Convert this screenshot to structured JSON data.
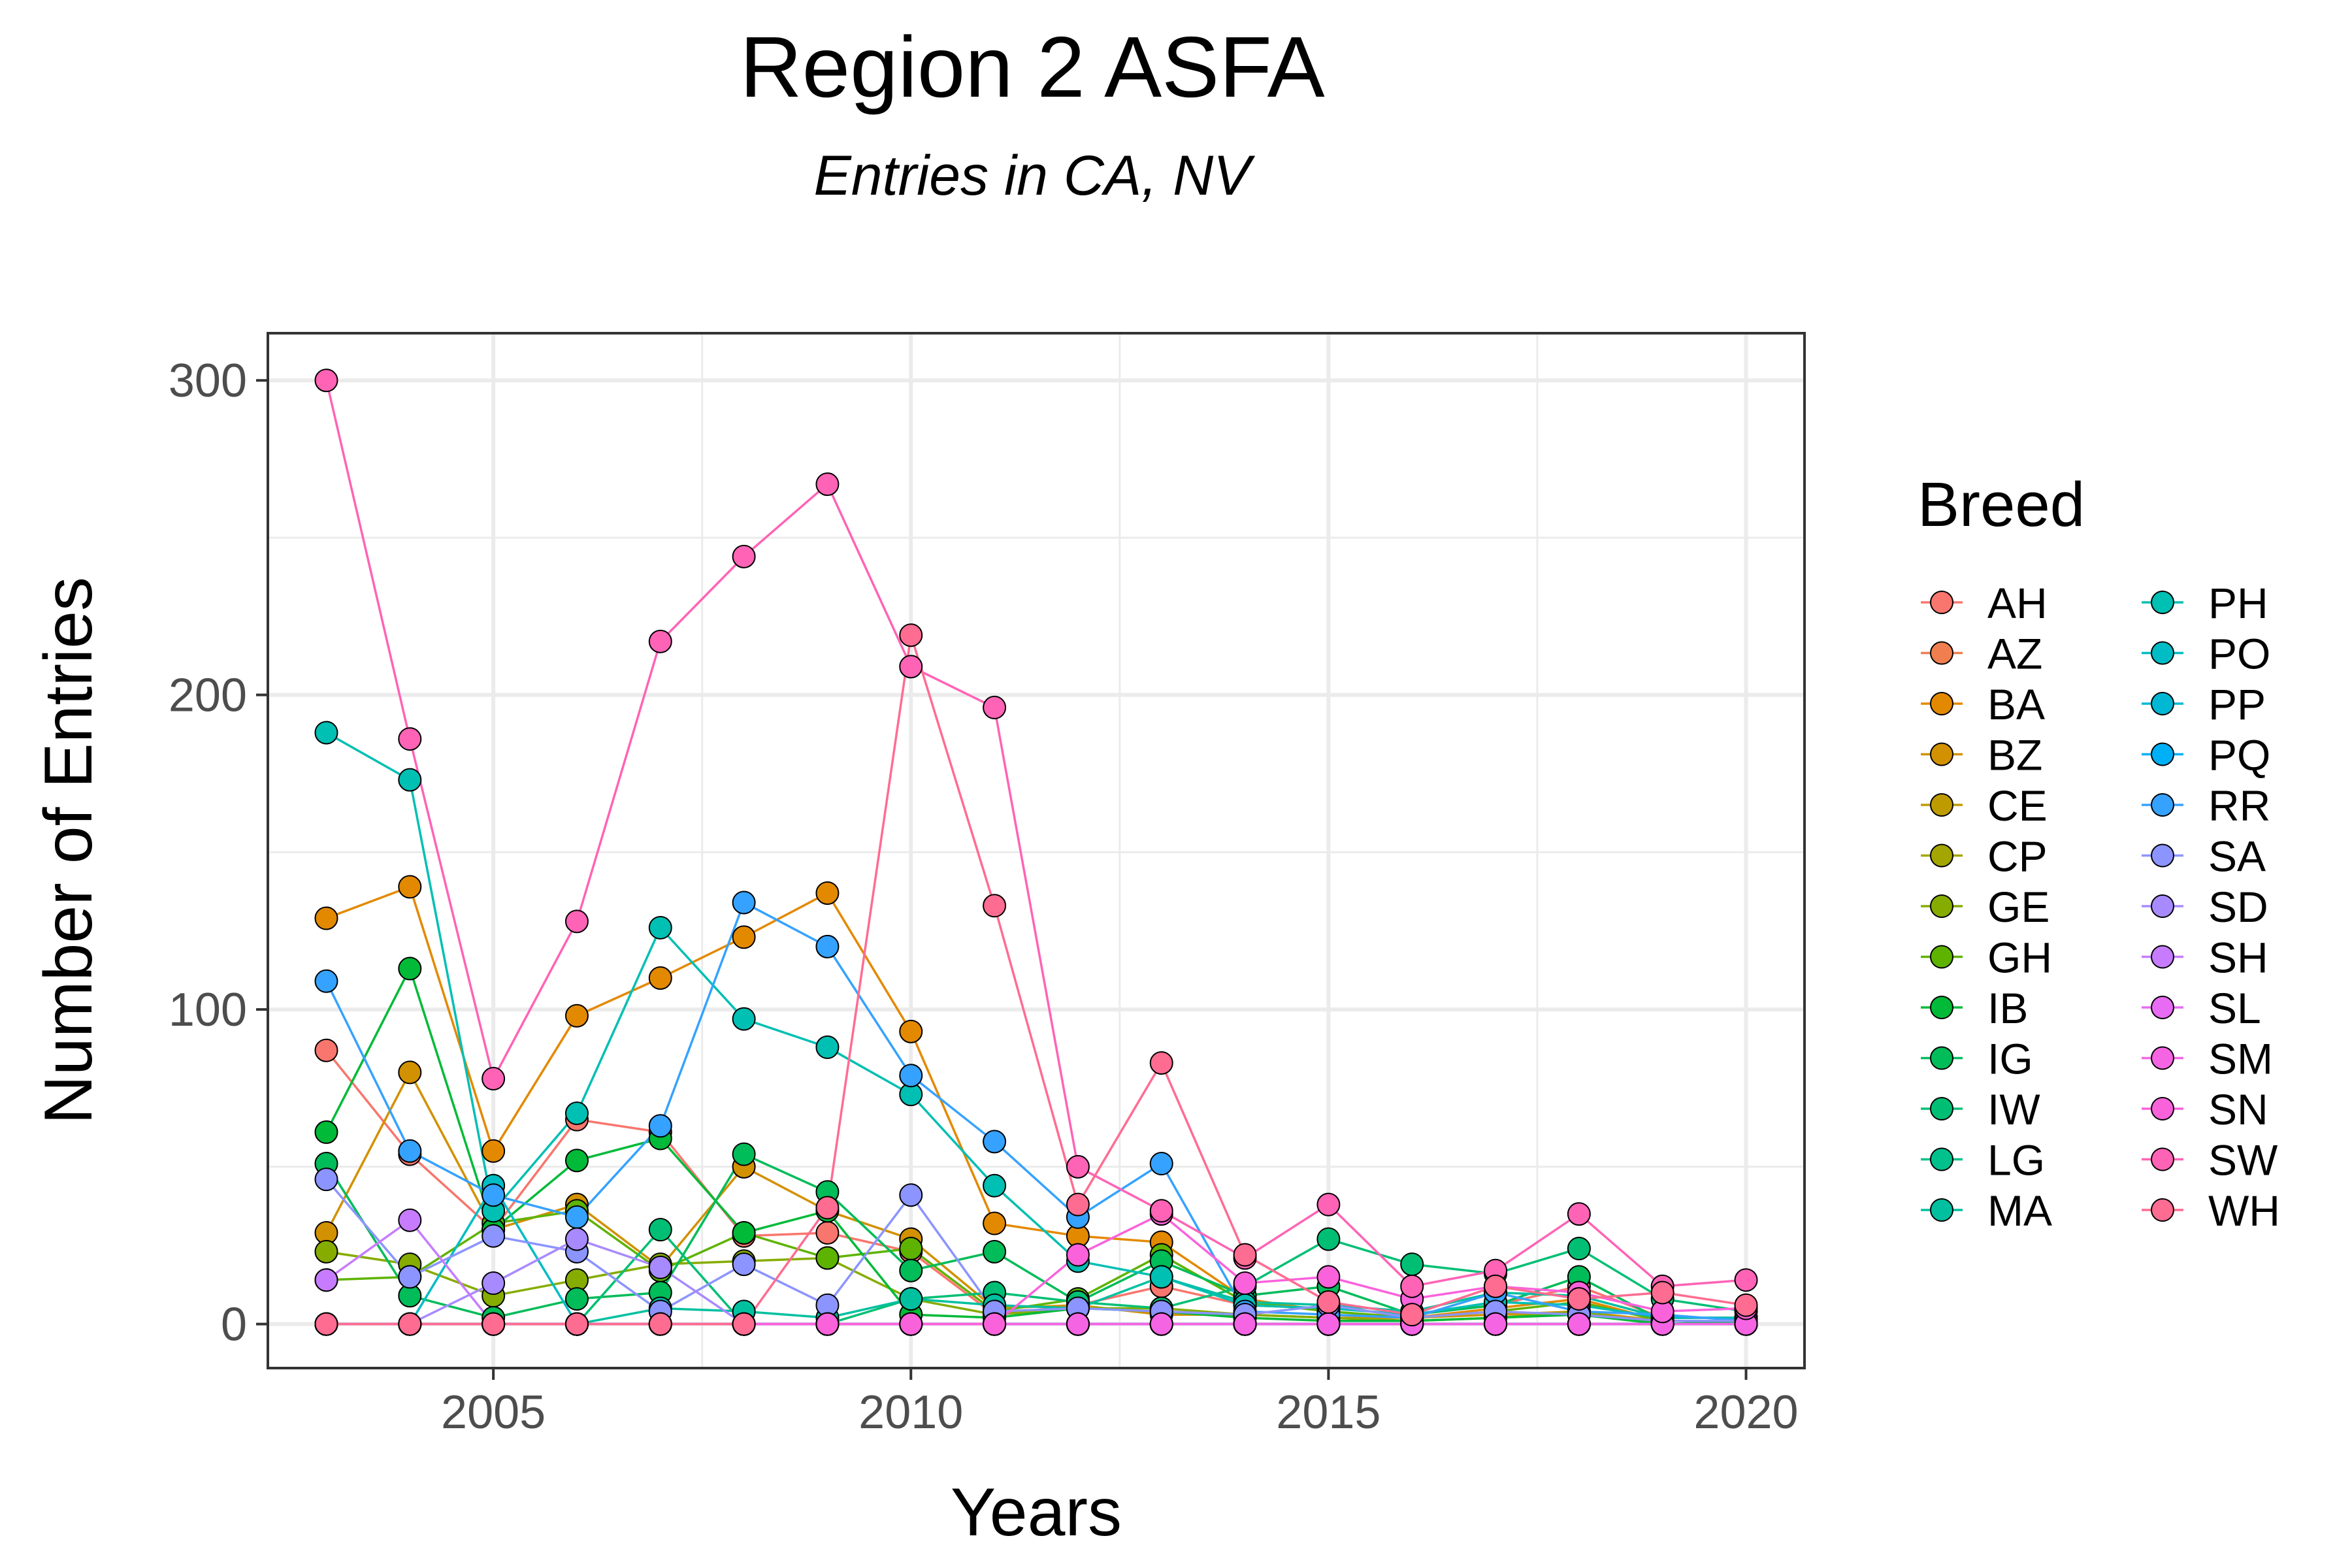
{
  "chart_data": {
    "type": "line",
    "title": "Region 2 ASFA",
    "subtitle": "Entries in CA, NV",
    "xlabel": "Years",
    "ylabel": "Number of Entries",
    "xlim": [
      2002.3,
      2020.7
    ],
    "ylim": [
      -14,
      315
    ],
    "x_ticks": [
      2005,
      2010,
      2015,
      2020
    ],
    "y_ticks": [
      0,
      100,
      200,
      300
    ],
    "grid": true,
    "legend": {
      "title": "Breed",
      "position": "right",
      "columns": 2
    },
    "x": [
      2003,
      2004,
      2005,
      2006,
      2007,
      2008,
      2009,
      2010,
      2011,
      2012,
      2013,
      2014,
      2015,
      2016,
      2017,
      2018,
      2019,
      2020
    ],
    "series": [
      {
        "name": "AH",
        "color": "#F8766D",
        "values": [
          87,
          54,
          30,
          65,
          61,
          28,
          29,
          23,
          3,
          6,
          12,
          6,
          5,
          3,
          6,
          12,
          2,
          2
        ]
      },
      {
        "name": "AZ",
        "color": "#F07E4F",
        "values": [
          0,
          0,
          0,
          0,
          0,
          0,
          0,
          0,
          0,
          0,
          0,
          0,
          0,
          0,
          0,
          0,
          0,
          0
        ]
      },
      {
        "name": "BA",
        "color": "#E38900",
        "values": [
          129,
          139,
          55,
          98,
          110,
          123,
          137,
          93,
          32,
          28,
          26,
          8,
          4,
          2,
          5,
          8,
          1,
          1
        ]
      },
      {
        "name": "BZ",
        "color": "#D29100",
        "values": [
          29,
          80,
          30,
          38,
          18,
          50,
          36,
          27,
          5,
          6,
          3,
          3,
          2,
          2,
          3,
          4,
          1,
          1
        ]
      },
      {
        "name": "CE",
        "color": "#BE9C00",
        "values": [
          0,
          0,
          0,
          0,
          0,
          0,
          0,
          0,
          0,
          0,
          0,
          0,
          0,
          0,
          0,
          0,
          0,
          0
        ]
      },
      {
        "name": "CP",
        "color": "#A3A500",
        "values": [
          0,
          0,
          0,
          0,
          0,
          0,
          0,
          0,
          0,
          0,
          0,
          0,
          0,
          0,
          0,
          0,
          0,
          0
        ]
      },
      {
        "name": "GE",
        "color": "#86AC00",
        "values": [
          23,
          19,
          9,
          14,
          19,
          20,
          21,
          8,
          3,
          5,
          5,
          3,
          2,
          1,
          2,
          4,
          0,
          0
        ]
      },
      {
        "name": "GH",
        "color": "#5EB300",
        "values": [
          14,
          15,
          32,
          36,
          17,
          29,
          21,
          24,
          4,
          8,
          22,
          7,
          4,
          2,
          4,
          7,
          1,
          1
        ]
      },
      {
        "name": "IB",
        "color": "#00BA38",
        "values": [
          61,
          113,
          30,
          52,
          59,
          29,
          36,
          3,
          2,
          5,
          4,
          2,
          1,
          1,
          2,
          3,
          0,
          1
        ]
      },
      {
        "name": "IG",
        "color": "#00BC59",
        "values": [
          51,
          9,
          2,
          8,
          10,
          54,
          42,
          17,
          23,
          7,
          20,
          9,
          12,
          3,
          6,
          15,
          1,
          1
        ]
      },
      {
        "name": "IW",
        "color": "#00BF74",
        "values": [
          0,
          0,
          0,
          0,
          30,
          0,
          0,
          8,
          10,
          7,
          5,
          12,
          27,
          19,
          16,
          24,
          8,
          4
        ]
      },
      {
        "name": "LG",
        "color": "#00C08B",
        "values": [
          0,
          0,
          0,
          0,
          0,
          0,
          0,
          0,
          0,
          0,
          0,
          0,
          0,
          0,
          0,
          0,
          0,
          0
        ]
      },
      {
        "name": "MA",
        "color": "#00C0A0",
        "values": [
          0,
          0,
          0,
          0,
          5,
          4,
          2,
          8,
          6,
          5,
          15,
          7,
          6,
          4,
          10,
          9,
          2,
          2
        ]
      },
      {
        "name": "PH",
        "color": "#00BFB3",
        "values": [
          188,
          173,
          36,
          67,
          126,
          97,
          88,
          73,
          44,
          20,
          15,
          6,
          5,
          3,
          7,
          6,
          2,
          2
        ]
      },
      {
        "name": "PO",
        "color": "#00BCC4",
        "values": [
          0,
          0,
          44,
          0,
          0,
          0,
          0,
          0,
          0,
          0,
          0,
          0,
          0,
          0,
          0,
          0,
          0,
          0
        ]
      },
      {
        "name": "PP",
        "color": "#00B8D4",
        "values": [
          0,
          0,
          0,
          0,
          0,
          0,
          0,
          0,
          0,
          0,
          0,
          0,
          0,
          0,
          0,
          0,
          0,
          0
        ]
      },
      {
        "name": "PQ",
        "color": "#00B0F6",
        "values": [
          0,
          0,
          0,
          0,
          0,
          0,
          0,
          0,
          0,
          0,
          0,
          0,
          0,
          0,
          0,
          0,
          0,
          0
        ]
      },
      {
        "name": "RR",
        "color": "#35A2FF",
        "values": [
          109,
          55,
          41,
          34,
          63,
          134,
          120,
          79,
          58,
          34,
          51,
          4,
          3,
          2,
          10,
          4,
          3,
          1
        ]
      },
      {
        "name": "SA",
        "color": "#8C94FF",
        "values": [
          46,
          15,
          28,
          23,
          4,
          19,
          6,
          41,
          4,
          5,
          4,
          3,
          6,
          2,
          4,
          3,
          1,
          1
        ]
      },
      {
        "name": "SD",
        "color": "#A88AFF",
        "values": [
          0,
          0,
          13,
          27,
          18,
          0,
          0,
          0,
          0,
          0,
          0,
          0,
          0,
          0,
          0,
          0,
          0,
          0
        ]
      },
      {
        "name": "SH",
        "color": "#C77CFF",
        "values": [
          14,
          33,
          0,
          0,
          0,
          0,
          0,
          0,
          0,
          0,
          0,
          0,
          0,
          0,
          0,
          0,
          0,
          0
        ]
      },
      {
        "name": "SL",
        "color": "#E76BF3",
        "values": [
          0,
          0,
          0,
          0,
          0,
          0,
          0,
          0,
          0,
          0,
          0,
          0,
          0,
          0,
          0,
          0,
          0,
          0
        ]
      },
      {
        "name": "SM",
        "color": "#F564E3",
        "values": [
          0,
          0,
          0,
          0,
          0,
          0,
          0,
          0,
          0,
          0,
          0,
          0,
          0,
          0,
          0,
          0,
          0,
          0
        ]
      },
      {
        "name": "SN",
        "color": "#FA62DB",
        "values": [
          0,
          0,
          0,
          0,
          0,
          0,
          0,
          0,
          0,
          22,
          35,
          13,
          15,
          8,
          12,
          10,
          4,
          5
        ]
      },
      {
        "name": "SW",
        "color": "#FF63B6",
        "values": [
          300,
          186,
          78,
          128,
          217,
          244,
          267,
          209,
          196,
          50,
          36,
          21,
          38,
          12,
          17,
          35,
          12,
          14
        ]
      },
      {
        "name": "WH",
        "color": "#FF6C91",
        "values": [
          0,
          0,
          0,
          0,
          0,
          0,
          37,
          219,
          133,
          38,
          83,
          22,
          7,
          3,
          12,
          8,
          10,
          6
        ]
      }
    ]
  }
}
